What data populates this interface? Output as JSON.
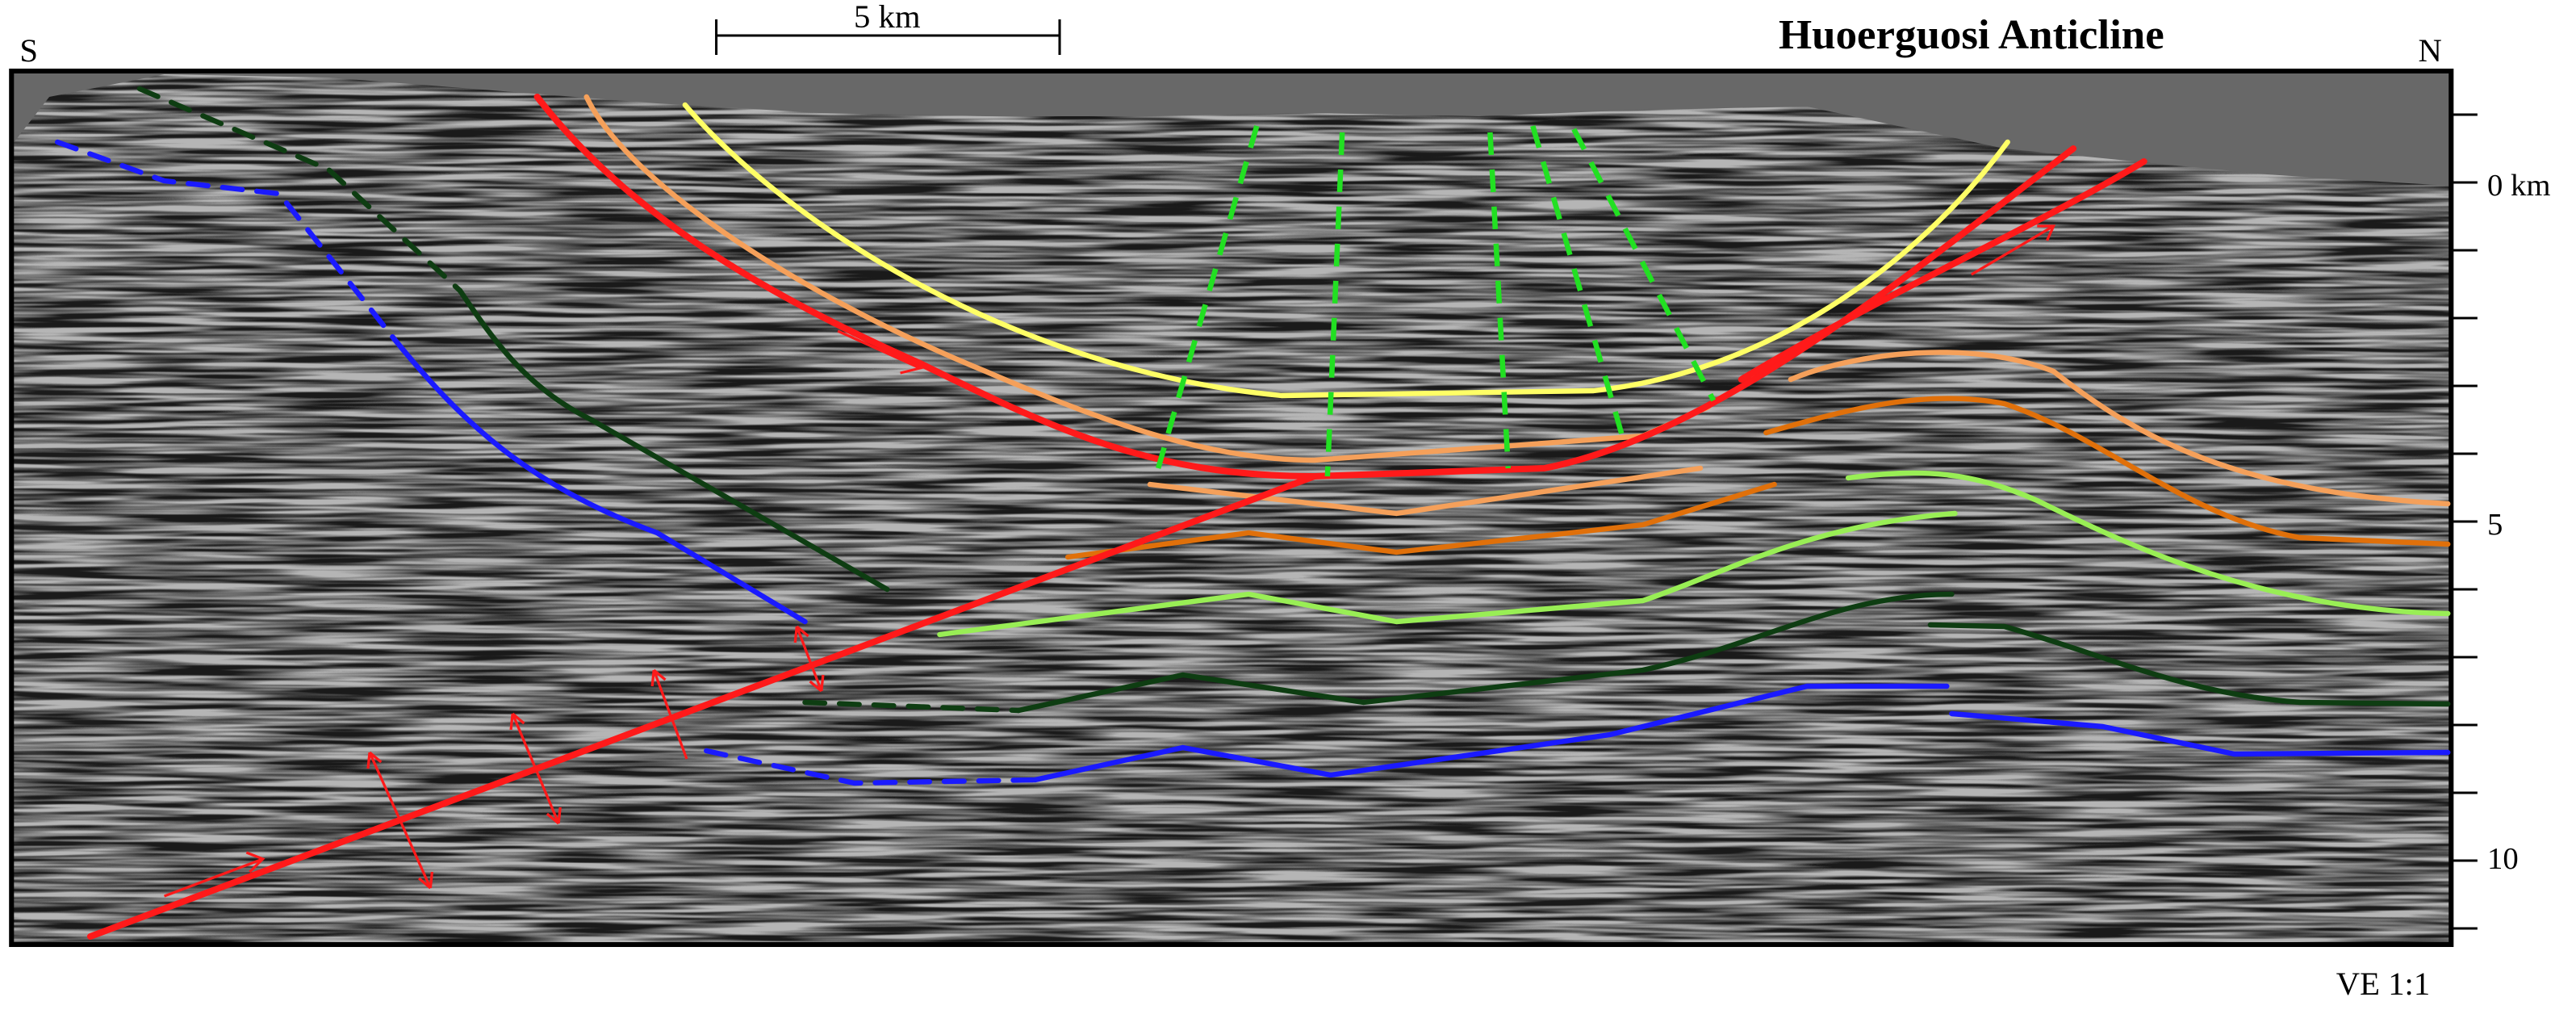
{
  "labels": {
    "south": "S",
    "north": "N",
    "scale_bar": "5 km",
    "title": "Huoerguosi Anticline",
    "vertical_exaggeration": "VE 1:1"
  },
  "depth_axis": [
    "0 km",
    "5",
    "10"
  ]
}
